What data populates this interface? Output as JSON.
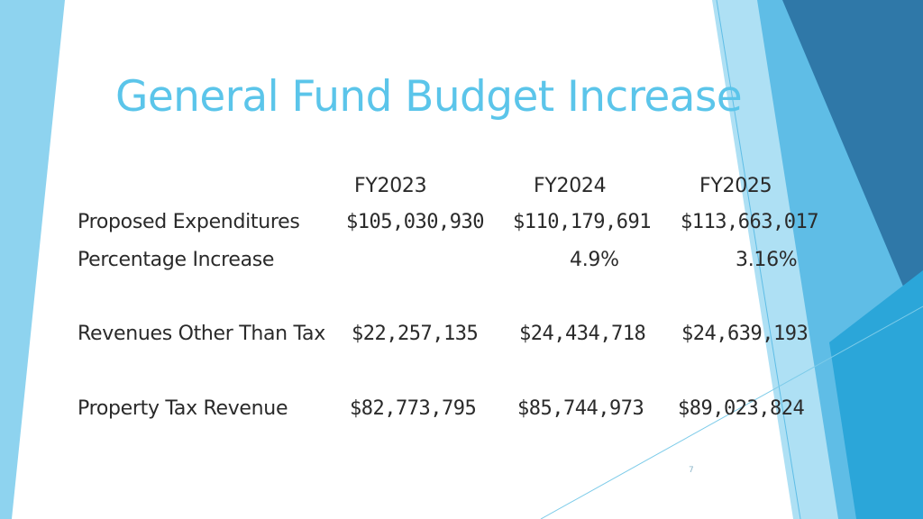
{
  "slide": {
    "title": "General Fund Budget Increase",
    "page_number": "7"
  },
  "table": {
    "headers": [
      "FY2023",
      "FY2024",
      "FY2025"
    ],
    "rows": [
      {
        "label": "Proposed Expenditures",
        "values": [
          "$105,030,930",
          "$110,179,691",
          "$113,663,017"
        ]
      },
      {
        "label": "Percentage Increase",
        "values": [
          "",
          "4.9%",
          "3.16%"
        ]
      },
      {
        "label": "Revenues Other Than Tax",
        "values": [
          "$22,257,135",
          "$24,434,718",
          "$24,639,193"
        ]
      },
      {
        "label": "Property Tax Revenue",
        "values": [
          "$82,773,795",
          "$85,744,973",
          "$89,023,824"
        ]
      }
    ]
  },
  "colors": {
    "title": "#5bc5ea",
    "accent_light": "#8ed3ef",
    "accent_mid": "#2ba6d9",
    "accent_dark": "#2a6f9e"
  }
}
